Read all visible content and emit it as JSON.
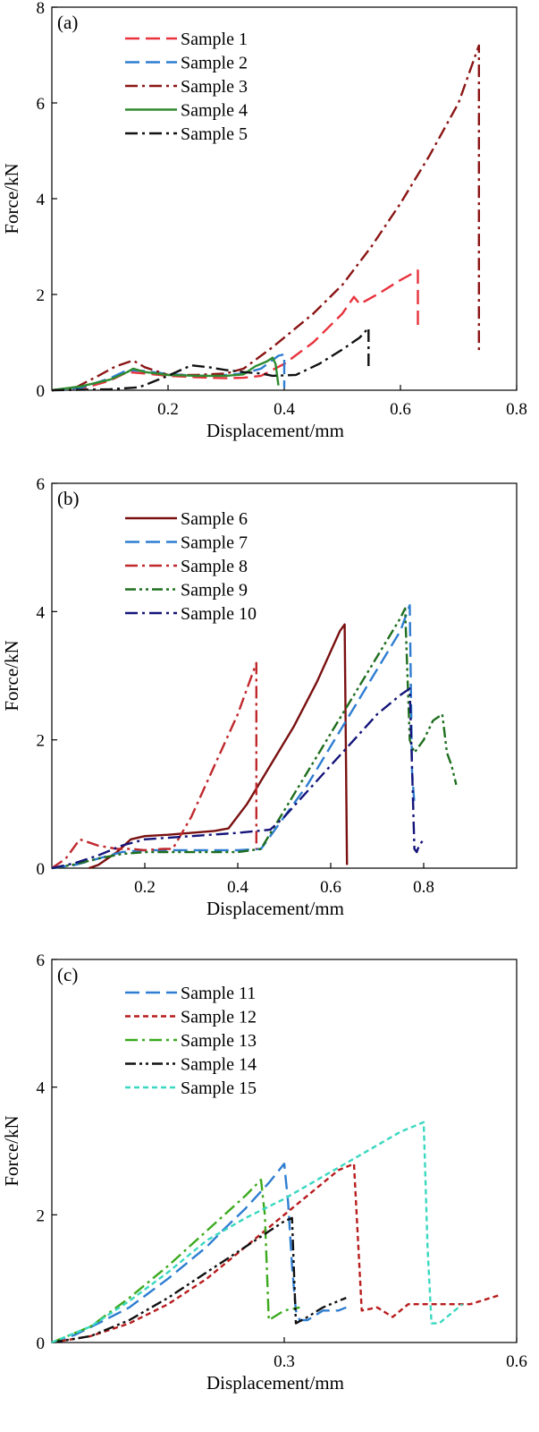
{
  "chart_data": [
    {
      "type": "line",
      "panel_label": "(a)",
      "xlabel": "Displacement/mm",
      "ylabel": "Force/kN",
      "xlim": [
        0,
        0.8
      ],
      "ylim": [
        0,
        8
      ],
      "xticks": [
        0.2,
        0.4,
        0.6,
        0.8
      ],
      "xtick_labels": [
        "0.2",
        "0.4",
        "0.6",
        "0.8"
      ],
      "yticks": [
        0,
        2,
        4,
        6,
        8
      ],
      "ytick_labels": [
        "0",
        "2",
        "4",
        "6",
        "8"
      ],
      "grid": false,
      "legend_position": "top-left",
      "series": [
        {
          "name": "Sample 1",
          "color": "#e8323c",
          "dash": "long-dash",
          "x": [
            0.0,
            0.06,
            0.1,
            0.13,
            0.16,
            0.2,
            0.25,
            0.3,
            0.33,
            0.36,
            0.4,
            0.45,
            0.5,
            0.52,
            0.53,
            0.56,
            0.6,
            0.63,
            0.63
          ],
          "y": [
            0.0,
            0.06,
            0.2,
            0.38,
            0.35,
            0.3,
            0.27,
            0.25,
            0.26,
            0.3,
            0.55,
            1.0,
            1.6,
            1.95,
            1.8,
            2.0,
            2.3,
            2.5,
            1.3
          ]
        },
        {
          "name": "Sample 2",
          "color": "#2e7dd1",
          "dash": "long-dash",
          "x": [
            0.0,
            0.05,
            0.1,
            0.13,
            0.16,
            0.2,
            0.25,
            0.3,
            0.33,
            0.36,
            0.39,
            0.4,
            0.4
          ],
          "y": [
            0.0,
            0.05,
            0.25,
            0.42,
            0.4,
            0.34,
            0.3,
            0.32,
            0.35,
            0.45,
            0.72,
            0.75,
            0.05
          ]
        },
        {
          "name": "Sample 3",
          "color": "#8b1414",
          "dash": "dash-dot",
          "x": [
            0.0,
            0.04,
            0.08,
            0.11,
            0.14,
            0.16,
            0.2,
            0.25,
            0.3,
            0.33,
            0.38,
            0.45,
            0.5,
            0.55,
            0.6,
            0.65,
            0.7,
            0.735,
            0.735
          ],
          "y": [
            0.0,
            0.05,
            0.3,
            0.5,
            0.62,
            0.48,
            0.32,
            0.32,
            0.35,
            0.45,
            0.9,
            1.6,
            2.2,
            3.0,
            3.9,
            4.9,
            6.0,
            7.2,
            0.8
          ]
        },
        {
          "name": "Sample 4",
          "color": "#2e8b2e",
          "dash": "solid",
          "x": [
            0.0,
            0.05,
            0.1,
            0.13,
            0.14,
            0.16,
            0.2,
            0.25,
            0.3,
            0.33,
            0.35,
            0.37,
            0.38,
            0.385,
            0.39
          ],
          "y": [
            0.0,
            0.08,
            0.22,
            0.38,
            0.45,
            0.38,
            0.32,
            0.3,
            0.3,
            0.33,
            0.5,
            0.6,
            0.68,
            0.55,
            0.1
          ]
        },
        {
          "name": "Sample 5",
          "color": "#111111",
          "dash": "dash-dot",
          "x": [
            0.0,
            0.1,
            0.15,
            0.2,
            0.24,
            0.27,
            0.3,
            0.33,
            0.36,
            0.38,
            0.42,
            0.46,
            0.5,
            0.53,
            0.545,
            0.545
          ],
          "y": [
            0.0,
            0.02,
            0.06,
            0.3,
            0.52,
            0.48,
            0.42,
            0.38,
            0.35,
            0.3,
            0.32,
            0.55,
            0.85,
            1.1,
            1.3,
            0.5
          ]
        }
      ]
    },
    {
      "type": "line",
      "panel_label": "(b)",
      "xlabel": "Displacement/mm",
      "ylabel": "Force/kN",
      "xlim": [
        0,
        1.0
      ],
      "ylim": [
        0,
        6
      ],
      "xticks": [
        0.2,
        0.4,
        0.6,
        0.8
      ],
      "xtick_labels": [
        "0.2",
        "0.4",
        "0.6",
        "0.8"
      ],
      "yticks": [
        0,
        2,
        4,
        6
      ],
      "ytick_labels": [
        "0",
        "2",
        "4",
        "6"
      ],
      "grid": false,
      "legend_position": "top-left",
      "series": [
        {
          "name": "Sample 6",
          "color": "#7a1010",
          "dash": "solid",
          "x": [
            0.08,
            0.1,
            0.14,
            0.17,
            0.2,
            0.25,
            0.3,
            0.35,
            0.38,
            0.42,
            0.47,
            0.52,
            0.57,
            0.62,
            0.63,
            0.635
          ],
          "y": [
            0.0,
            0.05,
            0.25,
            0.45,
            0.5,
            0.52,
            0.55,
            0.58,
            0.62,
            1.0,
            1.6,
            2.2,
            2.9,
            3.7,
            3.8,
            0.05
          ]
        },
        {
          "name": "Sample 7",
          "color": "#2e7dd1",
          "dash": "long-dash",
          "x": [
            0.0,
            0.05,
            0.1,
            0.15,
            0.2,
            0.3,
            0.4,
            0.45,
            0.5,
            0.55,
            0.6,
            0.65,
            0.7,
            0.75,
            0.77,
            0.775,
            0.78
          ],
          "y": [
            0.0,
            0.05,
            0.15,
            0.25,
            0.28,
            0.28,
            0.28,
            0.3,
            0.8,
            1.3,
            1.9,
            2.5,
            3.1,
            3.7,
            4.1,
            1.5,
            1.0
          ]
        },
        {
          "name": "Sample 8",
          "color": "#c0282c",
          "dash": "dash-dot",
          "x": [
            0.0,
            0.03,
            0.06,
            0.1,
            0.14,
            0.17,
            0.2,
            0.24,
            0.26,
            0.3,
            0.35,
            0.4,
            0.44,
            0.44
          ],
          "y": [
            0.0,
            0.15,
            0.45,
            0.35,
            0.3,
            0.3,
            0.28,
            0.3,
            0.3,
            0.8,
            1.6,
            2.4,
            3.2,
            0.3
          ]
        },
        {
          "name": "Sample 9",
          "color": "#1e6e1e",
          "dash": "dash-dot-dot",
          "x": [
            0.0,
            0.05,
            0.1,
            0.15,
            0.2,
            0.3,
            0.4,
            0.45,
            0.5,
            0.55,
            0.6,
            0.65,
            0.7,
            0.75,
            0.76,
            0.77,
            0.78,
            0.8,
            0.82,
            0.84,
            0.85,
            0.86,
            0.87
          ],
          "y": [
            0.0,
            0.06,
            0.15,
            0.22,
            0.25,
            0.25,
            0.25,
            0.3,
            0.9,
            1.5,
            2.1,
            2.7,
            3.3,
            3.9,
            4.05,
            2.0,
            1.8,
            2.0,
            2.3,
            2.4,
            1.8,
            1.6,
            1.3
          ]
        },
        {
          "name": "Sample 10",
          "color": "#14147a",
          "dash": "dash-dot",
          "x": [
            0.0,
            0.05,
            0.1,
            0.15,
            0.2,
            0.3,
            0.4,
            0.47,
            0.5,
            0.55,
            0.6,
            0.65,
            0.7,
            0.75,
            0.77,
            0.78,
            0.785,
            0.79,
            0.8
          ],
          "y": [
            0.0,
            0.08,
            0.2,
            0.35,
            0.45,
            0.5,
            0.55,
            0.6,
            0.8,
            1.2,
            1.6,
            2.0,
            2.4,
            2.7,
            2.8,
            0.3,
            0.25,
            0.35,
            0.45
          ]
        }
      ]
    },
    {
      "type": "line",
      "panel_label": "(c)",
      "xlabel": "Displacement/mm",
      "ylabel": "Force/kN",
      "xlim": [
        0,
        0.6
      ],
      "ylim": [
        0,
        6
      ],
      "xticks": [
        0.3,
        0.6
      ],
      "xtick_labels": [
        "0.3",
        "0.6"
      ],
      "yticks": [
        0,
        2,
        4,
        6
      ],
      "ytick_labels": [
        "0",
        "2",
        "4",
        "6"
      ],
      "grid": false,
      "legend_position": "top-left",
      "series": [
        {
          "name": "Sample 11",
          "color": "#2e7dd1",
          "dash": "long-dash",
          "x": [
            0.0,
            0.03,
            0.06,
            0.1,
            0.15,
            0.2,
            0.22,
            0.25,
            0.28,
            0.3,
            0.305,
            0.31,
            0.315,
            0.32,
            0.33,
            0.35,
            0.37,
            0.38
          ],
          "y": [
            0.0,
            0.12,
            0.3,
            0.55,
            1.0,
            1.5,
            1.75,
            2.1,
            2.5,
            2.8,
            2.2,
            1.2,
            0.5,
            0.35,
            0.35,
            0.5,
            0.5,
            0.55
          ]
        },
        {
          "name": "Sample 12",
          "color": "#b81c1c",
          "dash": "short-dash",
          "x": [
            0.0,
            0.05,
            0.1,
            0.15,
            0.2,
            0.25,
            0.3,
            0.35,
            0.37,
            0.39,
            0.4,
            0.42,
            0.44,
            0.46,
            0.5,
            0.54,
            0.58
          ],
          "y": [
            0.0,
            0.1,
            0.3,
            0.6,
            1.0,
            1.5,
            2.0,
            2.5,
            2.7,
            2.8,
            0.5,
            0.55,
            0.4,
            0.6,
            0.6,
            0.6,
            0.75
          ]
        },
        {
          "name": "Sample 13",
          "color": "#3caa1e",
          "dash": "dash-dot",
          "x": [
            0.0,
            0.05,
            0.1,
            0.15,
            0.2,
            0.25,
            0.27,
            0.275,
            0.28,
            0.3,
            0.32
          ],
          "y": [
            0.0,
            0.25,
            0.7,
            1.2,
            1.75,
            2.3,
            2.55,
            2.0,
            0.35,
            0.5,
            0.55
          ]
        },
        {
          "name": "Sample 14",
          "color": "#111111",
          "dash": "dash-dot-dot",
          "x": [
            0.0,
            0.05,
            0.1,
            0.15,
            0.2,
            0.25,
            0.3,
            0.31,
            0.315,
            0.33,
            0.35,
            0.37,
            0.38
          ],
          "y": [
            0.0,
            0.1,
            0.35,
            0.7,
            1.1,
            1.5,
            1.9,
            1.95,
            0.3,
            0.4,
            0.55,
            0.65,
            0.7
          ]
        },
        {
          "name": "Sample 15",
          "color": "#3ad8c0",
          "dash": "short-dash",
          "x": [
            0.0,
            0.05,
            0.1,
            0.15,
            0.2,
            0.25,
            0.3,
            0.35,
            0.4,
            0.45,
            0.48,
            0.485,
            0.49,
            0.5,
            0.52,
            0.53
          ],
          "y": [
            0.0,
            0.25,
            0.65,
            1.1,
            1.6,
            1.95,
            2.25,
            2.6,
            2.95,
            3.3,
            3.45,
            1.5,
            0.3,
            0.3,
            0.5,
            0.6
          ]
        }
      ]
    }
  ]
}
